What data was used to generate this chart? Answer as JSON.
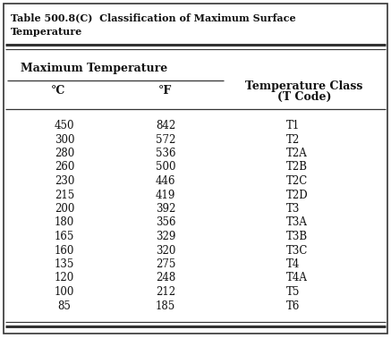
{
  "title_line1": "Table 500.8(C)  Classification of Maximum Surface",
  "title_line2": "Temperature",
  "group_header": "Maximum Temperature",
  "col_headers_c": "°C",
  "col_headers_f": "°F",
  "col_headers_t1": "Temperature Class",
  "col_headers_t2": "(T Code)",
  "rows": [
    [
      "450",
      "842",
      "T1"
    ],
    [
      "300",
      "572",
      "T2"
    ],
    [
      "280",
      "536",
      "T2A"
    ],
    [
      "260",
      "500",
      "T2B"
    ],
    [
      "230",
      "446",
      "T2C"
    ],
    [
      "215",
      "419",
      "T2D"
    ],
    [
      "200",
      "392",
      "T3"
    ],
    [
      "180",
      "356",
      "T3A"
    ],
    [
      "165",
      "329",
      "T3B"
    ],
    [
      "160",
      "320",
      "T3C"
    ],
    [
      "135",
      "275",
      "T4"
    ],
    [
      "120",
      "248",
      "T4A"
    ],
    [
      "100",
      "212",
      "T5"
    ],
    [
      "85",
      "185",
      "T6"
    ]
  ],
  "bg_color": "#ffffff",
  "border_color": "#333333",
  "text_color": "#111111",
  "fig_width": 4.37,
  "fig_height": 3.78,
  "dpi": 100
}
